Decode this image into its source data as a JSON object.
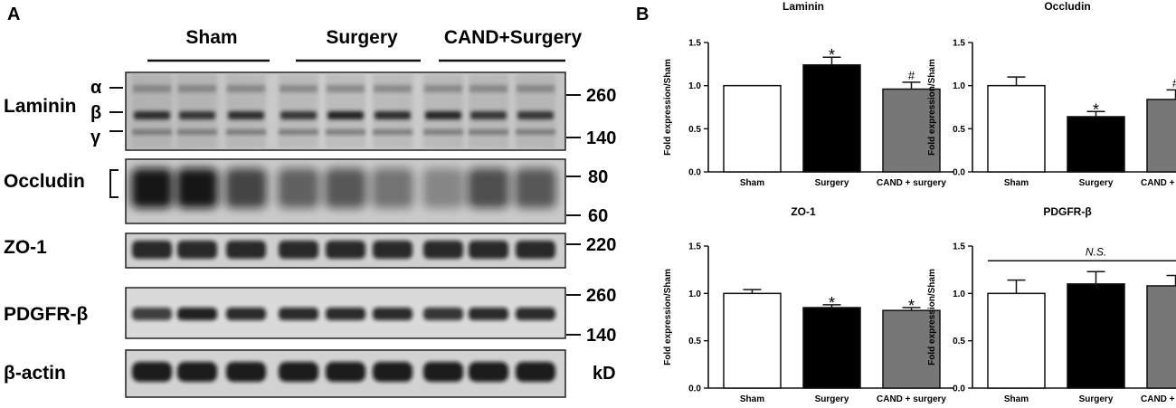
{
  "panels": {
    "a_label": "A",
    "b_label": "B"
  },
  "western_blot": {
    "groups": [
      "Sham",
      "Surgery",
      "CAND+Surgery"
    ],
    "proteins": [
      "Laminin",
      "Occludin",
      "ZO-1",
      "PDGFR-β",
      "β-actin"
    ],
    "laminin_chains": [
      "α",
      "β",
      "γ"
    ],
    "markers": {
      "laminin": [
        "260",
        "140"
      ],
      "occludin": [
        "80",
        "60"
      ],
      "zo1": [
        "220"
      ],
      "pdgfr": [
        "260",
        "140"
      ]
    },
    "unit": "kD"
  },
  "chart_data": [
    {
      "type": "bar",
      "title": "Laminin",
      "ylabel": "Fold expression/Sham",
      "xlabel": "",
      "categories": [
        "Sham",
        "Surgery",
        "CAND + surgery"
      ],
      "values": [
        1.0,
        1.24,
        0.96
      ],
      "errors": [
        0.0,
        0.09,
        0.08
      ],
      "annotations": [
        "",
        "*",
        "#"
      ],
      "ylim": [
        0,
        1.5
      ],
      "yticks": [
        "0.0",
        "0.5",
        "1.0",
        "1.5"
      ],
      "bar_colors": [
        "#ffffff",
        "#000000",
        "#777777"
      ],
      "grid": false
    },
    {
      "type": "bar",
      "title": "Occludin",
      "ylabel": "Fold expression/Sham",
      "xlabel": "",
      "categories": [
        "Sham",
        "Surgery",
        "CAND + surgery"
      ],
      "values": [
        1.0,
        0.64,
        0.84
      ],
      "errors": [
        0.1,
        0.06,
        0.11
      ],
      "annotations": [
        "",
        "*",
        "#"
      ],
      "ylim": [
        0,
        1.5
      ],
      "yticks": [
        "0.0",
        "0.5",
        "1.0",
        "1.5"
      ],
      "bar_colors": [
        "#ffffff",
        "#000000",
        "#777777"
      ],
      "grid": false
    },
    {
      "type": "bar",
      "title": "ZO-1",
      "ylabel": "Fold expression/Sham",
      "xlabel": "",
      "categories": [
        "Sham",
        "Surgery",
        "CAND + surgery"
      ],
      "values": [
        1.0,
        0.85,
        0.82
      ],
      "errors": [
        0.04,
        0.03,
        0.03
      ],
      "annotations": [
        "",
        "*",
        "*"
      ],
      "ylim": [
        0,
        1.5
      ],
      "yticks": [
        "0.0",
        "0.5",
        "1.0",
        "1.5"
      ],
      "bar_colors": [
        "#ffffff",
        "#000000",
        "#777777"
      ],
      "grid": false
    },
    {
      "type": "bar",
      "title": "PDGFR-β",
      "ylabel": "Fold expression/Sham",
      "xlabel": "",
      "categories": [
        "Sham",
        "Surgery",
        "CAND + surgery"
      ],
      "values": [
        1.0,
        1.1,
        1.08
      ],
      "errors": [
        0.14,
        0.13,
        0.11
      ],
      "annotations": [
        "",
        "",
        ""
      ],
      "group_annotation": "N.S.",
      "ylim": [
        0,
        1.5
      ],
      "yticks": [
        "0.0",
        "0.5",
        "1.0",
        "1.5"
      ],
      "bar_colors": [
        "#ffffff",
        "#000000",
        "#777777"
      ],
      "grid": false
    }
  ]
}
